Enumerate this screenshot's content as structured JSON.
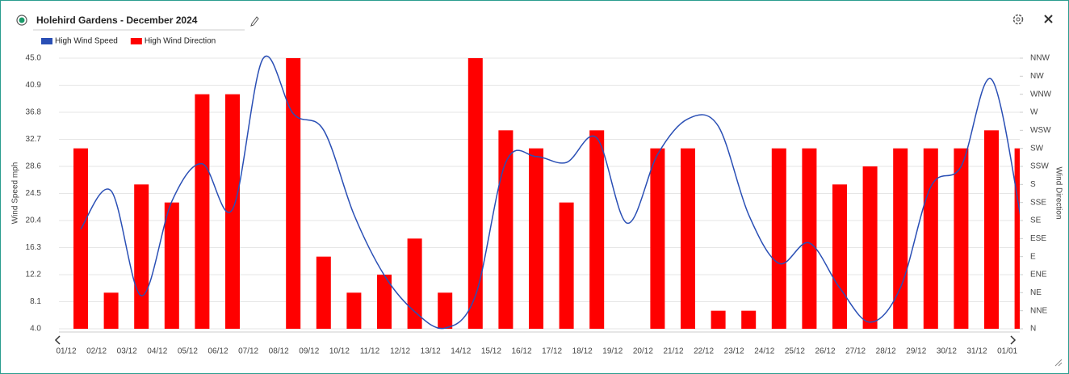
{
  "chart_data": {
    "type": "combo",
    "title": "Holehird Gardens - December 2024",
    "ylabel": "Wind Speed mph",
    "y2label": "Wind Direction",
    "categories": [
      "01/12",
      "02/12",
      "03/12",
      "04/12",
      "05/12",
      "06/12",
      "07/12",
      "08/12",
      "09/12",
      "10/12",
      "11/12",
      "12/12",
      "13/12",
      "14/12",
      "15/12",
      "16/12",
      "17/12",
      "18/12",
      "19/12",
      "20/12",
      "21/12",
      "22/12",
      "23/12",
      "24/12",
      "25/12",
      "26/12",
      "27/12",
      "28/12",
      "29/12",
      "30/12",
      "31/12",
      "01/01"
    ],
    "series": [
      {
        "name": "High Wind Speed",
        "type": "line",
        "color": "#2a4fb5",
        "values": [
          19.1,
          24.9,
          9.0,
          23.3,
          29.0,
          22.1,
          44.9,
          36.6,
          34.1,
          21.3,
          12.1,
          6.6,
          4.1,
          9.0,
          29.2,
          30.1,
          29.2,
          32.9,
          20.0,
          30.4,
          35.8,
          34.7,
          21.3,
          13.9,
          17.0,
          10.2,
          5.0,
          10.2,
          25.5,
          28.6,
          41.8,
          20.0
        ]
      },
      {
        "name": "High Wind Direction",
        "type": "bar",
        "axis": "y2",
        "color": "#ff0000",
        "values": [
          10,
          2,
          8,
          7,
          13,
          13,
          0,
          15,
          4,
          2,
          3,
          5,
          2,
          15,
          11,
          10,
          7,
          11,
          0,
          10,
          10,
          1,
          1,
          10,
          10,
          8,
          9,
          10,
          10,
          10,
          11,
          10
        ]
      }
    ],
    "ylim": [
      4,
      45
    ],
    "yticks": [
      {
        "value": 4,
        "label": "4.0"
      },
      {
        "value": 8.1,
        "label": "8.1"
      },
      {
        "value": 12.2,
        "label": "12.2"
      },
      {
        "value": 16.3,
        "label": "16.3"
      },
      {
        "value": 20.4,
        "label": "20.4"
      },
      {
        "value": 24.5,
        "label": "24.5"
      },
      {
        "value": 28.6,
        "label": "28.6"
      },
      {
        "value": 32.7,
        "label": "32.7"
      },
      {
        "value": 36.8,
        "label": "36.8"
      },
      {
        "value": 40.9,
        "label": "40.9"
      },
      {
        "value": 45,
        "label": "45.0"
      }
    ],
    "y2lim": [
      0,
      15
    ],
    "y2ticks": [
      {
        "value": 0,
        "label": "N"
      },
      {
        "value": 1,
        "label": "NNE"
      },
      {
        "value": 2,
        "label": "NE"
      },
      {
        "value": 3,
        "label": "ENE"
      },
      {
        "value": 4,
        "label": "E"
      },
      {
        "value": 5,
        "label": "ESE"
      },
      {
        "value": 6,
        "label": "SE"
      },
      {
        "value": 7,
        "label": "SSE"
      },
      {
        "value": 8,
        "label": "S"
      },
      {
        "value": 9,
        "label": "SSW"
      },
      {
        "value": 10,
        "label": "SW"
      },
      {
        "value": 11,
        "label": "WSW"
      },
      {
        "value": 12,
        "label": "W"
      },
      {
        "value": 13,
        "label": "WNW"
      },
      {
        "value": 14,
        "label": "NW"
      },
      {
        "value": 15,
        "label": "NNW"
      }
    ],
    "grid": true
  }
}
